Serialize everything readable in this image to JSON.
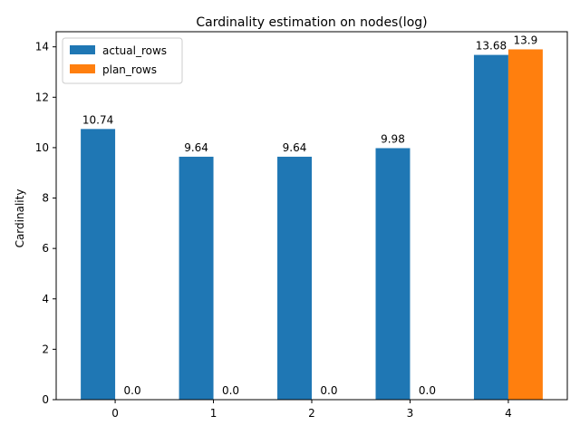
{
  "chart_data": {
    "type": "bar",
    "title": "Cardinality estimation on nodes(log)",
    "xlabel": "",
    "ylabel": "Cardinality",
    "categories": [
      "0",
      "1",
      "2",
      "3",
      "4"
    ],
    "series": [
      {
        "name": "actual_rows",
        "color": "#1f77b4",
        "values": [
          10.74,
          9.64,
          9.64,
          9.98,
          13.68
        ],
        "labels": [
          "10.74",
          "9.64",
          "9.64",
          "9.98",
          "13.68"
        ]
      },
      {
        "name": "plan_rows",
        "color": "#ff7f0e",
        "values": [
          0.0,
          0.0,
          0.0,
          0.0,
          13.9
        ],
        "labels": [
          "0.0",
          "0.0",
          "0.0",
          "0.0",
          "13.9"
        ]
      }
    ],
    "ylim": [
      0,
      14.6
    ],
    "yticks": [
      "0",
      "2",
      "4",
      "6",
      "8",
      "10",
      "12",
      "14"
    ],
    "grid": false,
    "legend_position": "top-left"
  }
}
